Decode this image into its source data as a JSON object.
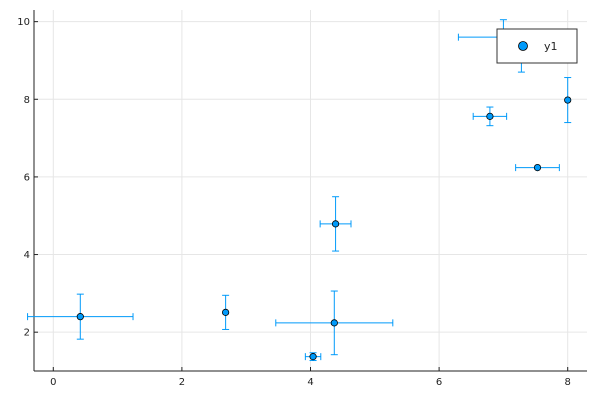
{
  "chart_data": {
    "type": "scatter",
    "title": "",
    "xlabel": "",
    "ylabel": "",
    "xlim": [
      -0.3,
      8.3
    ],
    "ylim": [
      1.0,
      10.3
    ],
    "xticks": [
      0,
      2,
      4,
      6,
      8
    ],
    "yticks": [
      2,
      4,
      6,
      8,
      10
    ],
    "xtick_labels": [
      "0",
      "2",
      "4",
      "6",
      "8"
    ],
    "ytick_labels": [
      "2",
      "4",
      "6",
      "8",
      "10"
    ],
    "grid": true,
    "legend_position": "top-right",
    "series": [
      {
        "name": "y1",
        "color": "#009AFA",
        "points": [
          {
            "x": 0.42,
            "y": 2.4,
            "xerr": 0.82,
            "yerr": 0.58
          },
          {
            "x": 2.68,
            "y": 2.51,
            "xerr": 0.0,
            "yerr": 0.44
          },
          {
            "x": 4.04,
            "y": 1.37,
            "xerr": 0.12,
            "yerr": 0.1
          },
          {
            "x": 4.37,
            "y": 2.24,
            "xerr": 0.91,
            "yerr": 0.82
          },
          {
            "x": 4.39,
            "y": 4.79,
            "xerr": 0.24,
            "yerr": 0.7
          },
          {
            "x": 6.79,
            "y": 7.56,
            "xerr": 0.26,
            "yerr": 0.24
          },
          {
            "x": 7.0,
            "y": 9.6,
            "xerr": 0.7,
            "yerr": 0.45
          },
          {
            "x": 7.28,
            "y": 9.2,
            "xerr": 0.0,
            "yerr": 0.5
          },
          {
            "x": 7.53,
            "y": 6.24,
            "xerr": 0.34,
            "yerr": 0.0
          },
          {
            "x": 8.0,
            "y": 7.98,
            "xerr": 0.0,
            "yerr": 0.58
          }
        ]
      }
    ]
  }
}
